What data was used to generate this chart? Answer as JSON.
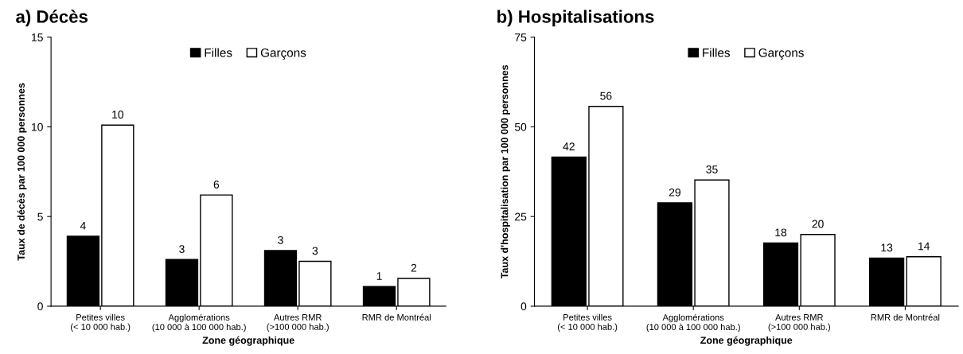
{
  "chart_data": [
    {
      "type": "bar",
      "title": "a) Décès",
      "xlabel": "Zone géographique",
      "ylabel": "Taux de décès par 100 000 personnes",
      "categories": [
        "Petites villes\n(< 10 000 hab.)",
        "Agglomérations\n(10 000 à 100 000 hab.)",
        "Autres RMR\n(>100 000 hab.)",
        "RMR de Montréal"
      ],
      "series": [
        {
          "name": "Filles",
          "color": "#000000",
          "values": [
            3.9,
            2.6,
            3.1,
            1.1
          ],
          "value_labels": [
            "4",
            "3",
            "3",
            "1"
          ]
        },
        {
          "name": "Garçons",
          "color": "#ffffff",
          "values": [
            10.1,
            6.2,
            2.5,
            1.55
          ],
          "value_labels": [
            "10",
            "6",
            "3",
            "2"
          ]
        }
      ],
      "ylim": [
        0,
        15
      ],
      "yticks": [
        0,
        5,
        10,
        15
      ],
      "legend": "top",
      "grid": false
    },
    {
      "type": "bar",
      "title": "b) Hospitalisations",
      "xlabel": "Zone géographique",
      "ylabel": "Taux d'hospitalisation par 100 000 personnes",
      "categories": [
        "Petites villes\n(< 10 000 hab.)",
        "Agglomérations\n(10 000 à 100 000 hab.)",
        "Autres RMR\n(>100 000 hab.)",
        "RMR de Montréal"
      ],
      "series": [
        {
          "name": "Filles",
          "color": "#000000",
          "values": [
            41.6,
            28.8,
            17.6,
            13.4
          ],
          "value_labels": [
            "42",
            "29",
            "18",
            "13"
          ]
        },
        {
          "name": "Garçons",
          "color": "#ffffff",
          "values": [
            55.7,
            35.2,
            20.0,
            13.8
          ],
          "value_labels": [
            "56",
            "35",
            "20",
            "14"
          ]
        }
      ],
      "ylim": [
        0,
        75
      ],
      "yticks": [
        0,
        25,
        50,
        75
      ],
      "legend": "top",
      "grid": false
    }
  ]
}
